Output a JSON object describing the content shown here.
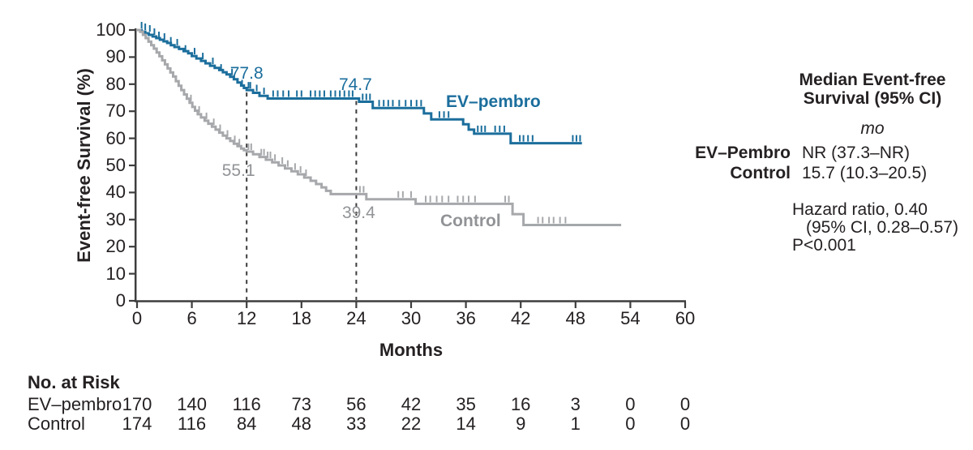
{
  "chart_data": {
    "type": "line",
    "subtype": "kaplan_meier_step",
    "title": "",
    "xlabel": "Months",
    "ylabel": "Event-free Survival (%)",
    "xlim": [
      0,
      60
    ],
    "ylim": [
      0,
      100
    ],
    "xticks": [
      0,
      6,
      12,
      18,
      24,
      30,
      36,
      42,
      48,
      54,
      60
    ],
    "yticks": [
      0,
      10,
      20,
      30,
      40,
      50,
      60,
      70,
      80,
      90,
      100
    ],
    "grid": false,
    "legend_position": "inline-labels",
    "colors": {
      "axis": "#3d3d3d",
      "text": "#252122",
      "dashed_line": "#3d3d3d"
    },
    "reference_lines": [
      {
        "x": 12,
        "top_pct": 77.8
      },
      {
        "x": 24,
        "top_pct": 74.7
      }
    ],
    "series": [
      {
        "name": "EV–pembro",
        "color": "#1b6e9c",
        "label_text": "EV–pembro",
        "annotations": [
          {
            "x": 12,
            "y": 77.8,
            "label": "77.8",
            "dx": 0,
            "dy": -31
          },
          {
            "x": 24,
            "y": 74.7,
            "label": "74.7",
            "dx": -1,
            "dy": -28
          }
        ],
        "points": [
          [
            0,
            100
          ],
          [
            0.5,
            99.4
          ],
          [
            0.9,
            98.8
          ],
          [
            1.3,
            98.2
          ],
          [
            1.7,
            97.6
          ],
          [
            2.1,
            97.0
          ],
          [
            2.5,
            96.4
          ],
          [
            2.9,
            95.8
          ],
          [
            3.3,
            95.2
          ],
          [
            3.7,
            94.4
          ],
          [
            4.1,
            93.7
          ],
          [
            4.6,
            93.0
          ],
          [
            5.1,
            92.2
          ],
          [
            5.6,
            91.4
          ],
          [
            6.0,
            90.4
          ],
          [
            6.5,
            89.5
          ],
          [
            7.0,
            88.6
          ],
          [
            7.5,
            87.7
          ],
          [
            8.0,
            86.8
          ],
          [
            8.5,
            86.0
          ],
          [
            9.0,
            85.2
          ],
          [
            9.4,
            84.4
          ],
          [
            9.8,
            83.6
          ],
          [
            10.2,
            82.7
          ],
          [
            10.6,
            81.8
          ],
          [
            11.0,
            80.6
          ],
          [
            11.4,
            79.5
          ],
          [
            11.7,
            78.6
          ],
          [
            12.0,
            77.8
          ],
          [
            12.7,
            76.8
          ],
          [
            13.4,
            75.7
          ],
          [
            14.3,
            74.7
          ],
          [
            24.3,
            73.5
          ],
          [
            25.8,
            71.2
          ],
          [
            31.4,
            69.2
          ],
          [
            32.2,
            67.0
          ],
          [
            35.7,
            65.2
          ],
          [
            36.3,
            63.2
          ],
          [
            36.9,
            61.7
          ],
          [
            40.9,
            58.2
          ],
          [
            48.7,
            58.2
          ]
        ],
        "censor_ticks": [
          [
            0.5,
            100
          ],
          [
            0.9,
            99.4
          ],
          [
            1.4,
            98.8
          ],
          [
            1.9,
            97.6
          ],
          [
            2.4,
            96.4
          ],
          [
            3.0,
            95.8
          ],
          [
            3.7,
            94.4
          ],
          [
            4.4,
            93.7
          ],
          [
            5.3,
            91.4
          ],
          [
            6.3,
            90.4
          ],
          [
            7.2,
            88.6
          ],
          [
            8.3,
            86.8
          ],
          [
            9.2,
            84.4
          ],
          [
            10.4,
            82.7
          ],
          [
            11.5,
            78.6
          ],
          [
            12.2,
            77.8
          ],
          [
            12.4,
            77.8
          ],
          [
            13.1,
            76.8
          ],
          [
            13.9,
            75.7
          ],
          [
            14.9,
            74.7
          ],
          [
            15.4,
            74.7
          ],
          [
            16.0,
            74.7
          ],
          [
            16.6,
            74.7
          ],
          [
            17.5,
            74.7
          ],
          [
            18.0,
            74.7
          ],
          [
            19.0,
            74.7
          ],
          [
            19.5,
            74.7
          ],
          [
            20.0,
            74.7
          ],
          [
            20.5,
            74.7
          ],
          [
            21.2,
            74.7
          ],
          [
            21.7,
            74.7
          ],
          [
            22.2,
            74.7
          ],
          [
            22.7,
            74.7
          ],
          [
            23.2,
            74.7
          ],
          [
            23.6,
            74.7
          ],
          [
            24.7,
            73.5
          ],
          [
            25.1,
            73.5
          ],
          [
            25.5,
            73.5
          ],
          [
            26.5,
            71.2
          ],
          [
            27.0,
            71.2
          ],
          [
            27.5,
            71.2
          ],
          [
            28.0,
            71.2
          ],
          [
            28.7,
            71.2
          ],
          [
            29.4,
            71.2
          ],
          [
            30.0,
            71.2
          ],
          [
            30.6,
            71.2
          ],
          [
            31.1,
            71.2
          ],
          [
            33.1,
            67.0
          ],
          [
            33.6,
            67.0
          ],
          [
            34.1,
            67.0
          ],
          [
            37.3,
            61.7
          ],
          [
            37.7,
            61.7
          ],
          [
            38.1,
            61.7
          ],
          [
            39.2,
            61.7
          ],
          [
            39.7,
            61.7
          ],
          [
            40.2,
            61.7
          ],
          [
            41.9,
            58.2
          ],
          [
            42.3,
            58.2
          ],
          [
            42.8,
            58.2
          ],
          [
            43.3,
            58.2
          ],
          [
            47.7,
            58.2
          ],
          [
            48.1,
            58.2
          ],
          [
            48.5,
            58.2
          ]
        ]
      },
      {
        "name": "Control",
        "color": "#a6a8ab",
        "text_color": "#919396",
        "label_text": "Control",
        "annotations": [
          {
            "x": 12,
            "y": 55.1,
            "label": "55.1",
            "dx": -10,
            "dy": 13
          },
          {
            "x": 24,
            "y": 39.4,
            "label": "39.4",
            "dx": 3,
            "dy": 13
          }
        ],
        "points": [
          [
            0,
            100
          ],
          [
            0.35,
            99.3
          ],
          [
            0.65,
            98.2
          ],
          [
            0.95,
            97.0
          ],
          [
            1.25,
            95.7
          ],
          [
            1.55,
            94.4
          ],
          [
            1.85,
            93.1
          ],
          [
            2.15,
            91.7
          ],
          [
            2.45,
            90.3
          ],
          [
            2.75,
            88.8
          ],
          [
            3.05,
            87.3
          ],
          [
            3.35,
            85.8
          ],
          [
            3.65,
            84.3
          ],
          [
            3.95,
            82.8
          ],
          [
            4.25,
            81.1
          ],
          [
            4.55,
            79.4
          ],
          [
            4.85,
            77.8
          ],
          [
            5.15,
            76.2
          ],
          [
            5.45,
            74.6
          ],
          [
            5.75,
            73.1
          ],
          [
            6.05,
            71.6
          ],
          [
            6.35,
            70.2
          ],
          [
            6.65,
            68.9
          ],
          [
            7.0,
            67.7
          ],
          [
            7.4,
            66.5
          ],
          [
            7.8,
            65.4
          ],
          [
            8.2,
            64.3
          ],
          [
            8.6,
            63.2
          ],
          [
            9.0,
            62.1
          ],
          [
            9.4,
            61.0
          ],
          [
            9.8,
            60.0
          ],
          [
            10.2,
            59.0
          ],
          [
            10.6,
            58.0
          ],
          [
            11.0,
            57.1
          ],
          [
            11.4,
            56.2
          ],
          [
            11.7,
            55.6
          ],
          [
            12.0,
            55.1
          ],
          [
            12.7,
            54.1
          ],
          [
            13.4,
            53.1
          ],
          [
            14.1,
            52.1
          ],
          [
            14.8,
            51.1
          ],
          [
            15.5,
            50.0
          ],
          [
            16.2,
            48.9
          ],
          [
            16.9,
            47.8
          ],
          [
            17.6,
            46.7
          ],
          [
            18.3,
            45.5
          ],
          [
            19.0,
            44.3
          ],
          [
            19.6,
            43.1
          ],
          [
            20.2,
            41.9
          ],
          [
            20.7,
            40.6
          ],
          [
            21.2,
            39.4
          ],
          [
            25.1,
            37.5
          ],
          [
            30.5,
            35.8
          ],
          [
            41.1,
            32.0
          ],
          [
            42.3,
            28.0
          ],
          [
            53.0,
            28.0
          ]
        ],
        "censor_ticks": [
          [
            5.9,
            73.1
          ],
          [
            6.8,
            68.9
          ],
          [
            7.6,
            66.5
          ],
          [
            8.4,
            64.3
          ],
          [
            9.1,
            62.1
          ],
          [
            9.9,
            60.0
          ],
          [
            10.7,
            58.0
          ],
          [
            11.2,
            56.8
          ],
          [
            12.2,
            55.1
          ],
          [
            12.5,
            55.1
          ],
          [
            13.6,
            53.1
          ],
          [
            13.9,
            53.1
          ],
          [
            14.3,
            52.1
          ],
          [
            14.6,
            52.1
          ],
          [
            15.1,
            51.1
          ],
          [
            15.9,
            50.0
          ],
          [
            16.5,
            48.9
          ],
          [
            17.3,
            47.8
          ],
          [
            17.9,
            46.7
          ],
          [
            18.5,
            45.5
          ],
          [
            24.4,
            39.4
          ],
          [
            24.8,
            39.4
          ],
          [
            28.6,
            37.5
          ],
          [
            29.1,
            37.5
          ],
          [
            30.0,
            37.5
          ],
          [
            31.6,
            35.8
          ],
          [
            32.1,
            35.8
          ],
          [
            32.8,
            35.8
          ],
          [
            33.4,
            35.8
          ],
          [
            34.1,
            35.8
          ],
          [
            35.1,
            35.8
          ],
          [
            35.7,
            35.8
          ],
          [
            36.3,
            35.8
          ],
          [
            37.0,
            35.8
          ],
          [
            40.3,
            35.8
          ],
          [
            40.7,
            35.8
          ],
          [
            43.9,
            28.0
          ],
          [
            44.4,
            28.0
          ],
          [
            45.1,
            28.0
          ],
          [
            45.6,
            28.0
          ],
          [
            46.3,
            28.0
          ],
          [
            46.9,
            28.0
          ]
        ]
      }
    ],
    "risk_table": {
      "title": "No. at Risk",
      "timepoints": [
        0,
        6,
        12,
        18,
        24,
        30,
        36,
        42,
        48,
        54,
        60
      ],
      "rows": [
        {
          "label": "EV–pembro",
          "values": [
            170,
            140,
            116,
            73,
            56,
            42,
            35,
            16,
            3,
            0,
            0
          ]
        },
        {
          "label": "Control",
          "values": [
            174,
            116,
            84,
            48,
            33,
            22,
            14,
            9,
            1,
            0,
            0
          ]
        }
      ]
    },
    "stats_panel": {
      "header_line1": "Median Event-free",
      "header_line2": "Survival (95% CI)",
      "unit": "mo",
      "rows": [
        {
          "label": "EV–Pembro",
          "value": "NR (37.3–NR)"
        },
        {
          "label": "Control",
          "value": "15.7 (10.3–20.5)"
        }
      ],
      "hazard_line1": "Hazard ratio, 0.40",
      "hazard_line2": "(95% CI, 0.28–0.57)",
      "p_value": "P<0.001"
    }
  }
}
